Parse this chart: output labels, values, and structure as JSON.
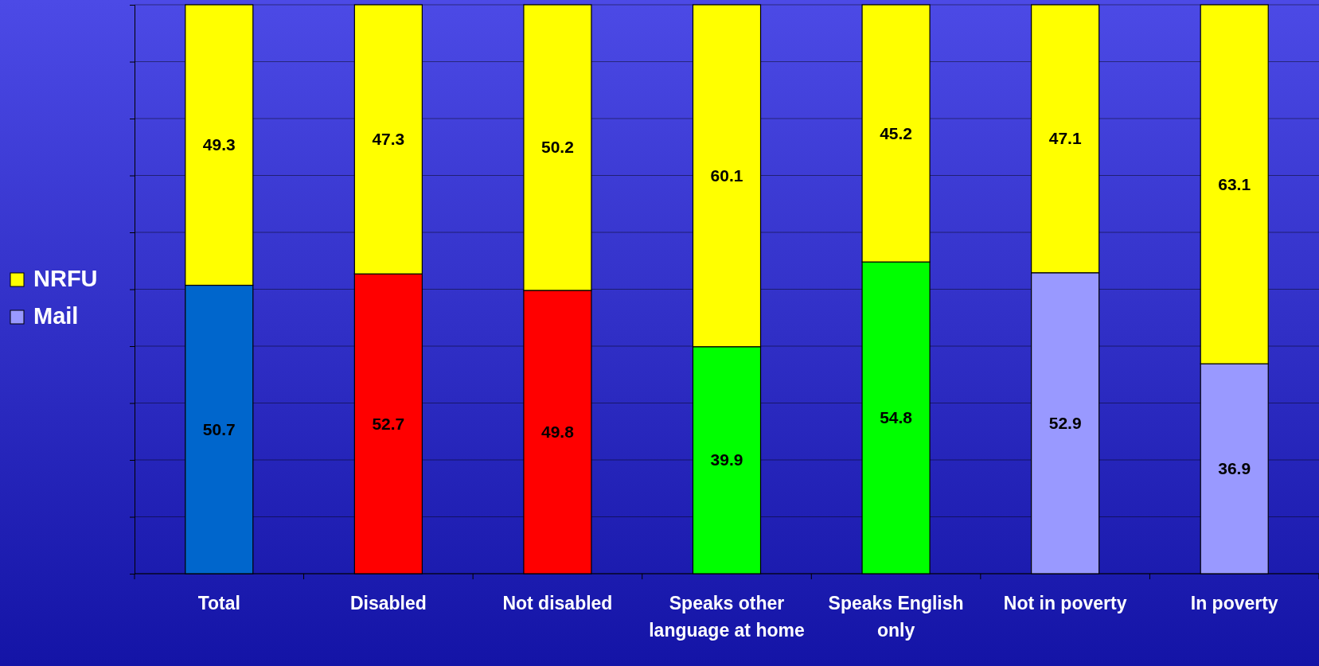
{
  "chart_data": {
    "type": "bar",
    "stacked": true,
    "categories": [
      "Total",
      "Disabled",
      "Not disabled",
      "Speaks other language at home",
      "Speaks English only",
      "Not in poverty",
      "In poverty"
    ],
    "series": [
      {
        "name": "Mail",
        "color": "#9999ff",
        "colors": [
          "#0066cc",
          "#ff0000",
          "#ff0000",
          "#00ff00",
          "#00ff00",
          "#9999ff",
          "#9999ff"
        ],
        "values": [
          50.7,
          52.7,
          49.8,
          39.9,
          54.8,
          52.9,
          36.9
        ]
      },
      {
        "name": "NRFU",
        "color": "#ffff00",
        "values": [
          49.3,
          47.3,
          50.2,
          60.1,
          45.2,
          47.1,
          63.1
        ]
      }
    ],
    "ylim": [
      0,
      100
    ],
    "yticks": [
      {
        "value": 0,
        "label": null
      },
      {
        "value": 10,
        "label": null
      },
      {
        "value": 20,
        "label": null
      },
      {
        "value": 30,
        "label": null
      },
      {
        "value": 40,
        "label": null
      },
      {
        "value": 50,
        "label": null
      },
      {
        "value": 60,
        "label": null
      },
      {
        "value": 70,
        "label": null
      },
      {
        "value": 80,
        "label": null
      },
      {
        "value": 90,
        "label": null
      },
      {
        "value": 100,
        "label": null
      }
    ],
    "tick_labels": "x",
    "grid": "y",
    "legend": "left",
    "data_labels": true
  }
}
